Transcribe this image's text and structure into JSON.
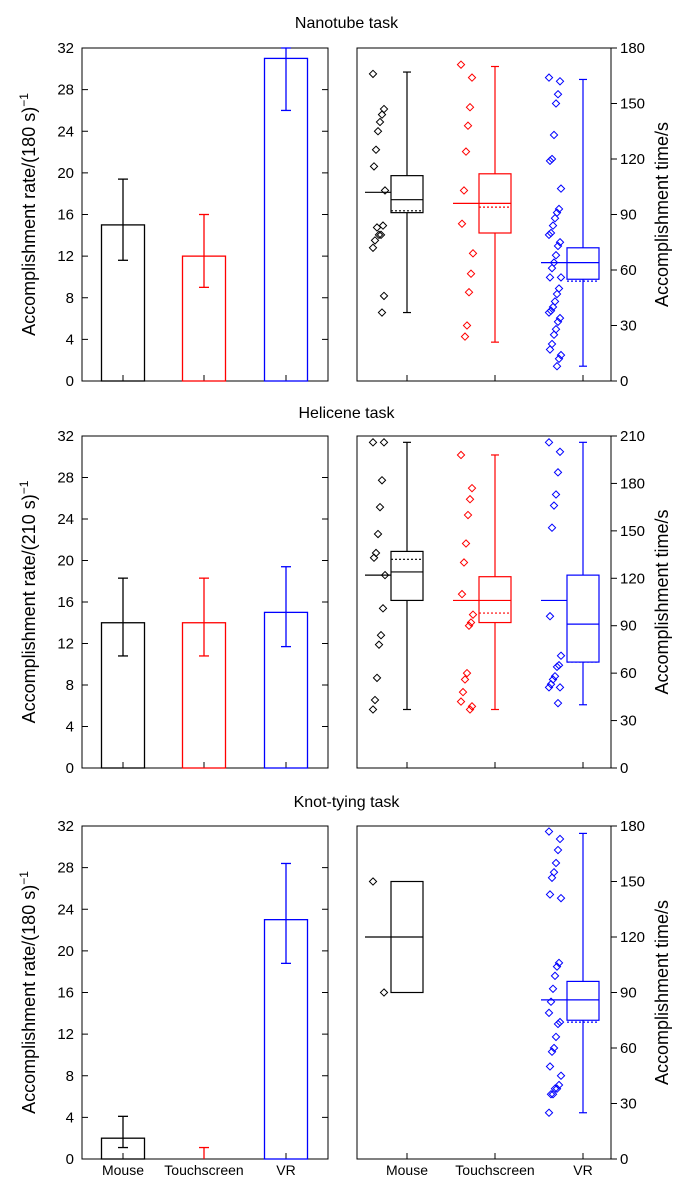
{
  "colors": {
    "mouse": "#000000",
    "touchscreen": "#ff0000",
    "vr": "#0000ff",
    "axis": "#000000"
  },
  "chart_data": [
    {
      "type": "bar",
      "title": "Nanotube task",
      "ylabel": "Accomplishment rate/(180 s)",
      "ylabel_exponent": "−1",
      "ylim": [
        0,
        32
      ],
      "yticks": [
        "0",
        "4",
        "8",
        "12",
        "16",
        "20",
        "24",
        "28",
        "32"
      ],
      "categories": [
        "Mouse",
        "Touchscreen",
        "VR"
      ],
      "values": [
        15,
        12,
        31
      ],
      "error_low": [
        11.6,
        9.0,
        26.0
      ],
      "error_high": [
        19.4,
        16.0,
        32.0
      ],
      "show_category_labels": false
    },
    {
      "type": "box",
      "title": "",
      "ylabel": "Accomplishment time/s",
      "ylim": [
        0,
        180
      ],
      "yticks": [
        "0",
        "30",
        "60",
        "90",
        "120",
        "150",
        "180"
      ],
      "categories": [
        "Mouse",
        "Touchscreen",
        "VR"
      ],
      "boxes": [
        {
          "q1": 91,
          "median": 98,
          "q3": 111,
          "mean": 92,
          "whisker_low": 37,
          "whisker_high": 167,
          "overall_mean": 102
        },
        {
          "q1": 80,
          "median": 96,
          "q3": 112,
          "mean": 94,
          "whisker_low": 21,
          "whisker_high": 170,
          "overall_mean": 96
        },
        {
          "q1": 55,
          "median": 64,
          "q3": 72,
          "mean": 54,
          "whisker_low": 8,
          "whisker_high": 163,
          "overall_mean": 64
        }
      ],
      "points": [
        [
          166,
          147,
          144,
          140,
          135,
          125,
          116,
          103,
          84,
          79,
          79,
          83,
          76,
          72,
          46,
          37
        ],
        [
          171,
          164,
          148,
          138,
          124,
          103,
          85,
          69,
          58,
          48,
          30,
          24
        ],
        [
          164,
          162,
          155,
          150,
          133,
          120,
          119,
          104,
          93,
          91,
          88,
          84,
          80,
          79,
          75,
          73,
          68,
          64,
          61,
          56,
          56,
          50,
          47,
          43,
          40,
          38,
          37,
          34,
          32,
          28,
          25,
          20,
          17,
          14,
          12,
          8
        ]
      ],
      "show_category_labels": false
    },
    {
      "type": "bar",
      "title": "Helicene task",
      "ylabel": "Accomplishment rate/(210 s)",
      "ylabel_exponent": "−1",
      "ylim": [
        0,
        32
      ],
      "yticks": [
        "0",
        "4",
        "8",
        "12",
        "16",
        "20",
        "24",
        "28",
        "32"
      ],
      "categories": [
        "Mouse",
        "Touchscreen",
        "VR"
      ],
      "values": [
        14,
        14,
        15
      ],
      "error_low": [
        10.8,
        10.8,
        11.7
      ],
      "error_high": [
        18.3,
        18.3,
        19.4
      ],
      "show_category_labels": false
    },
    {
      "type": "box",
      "title": "",
      "ylabel": "Accomplishment time/s",
      "ylim": [
        0,
        210
      ],
      "yticks": [
        "0",
        "30",
        "60",
        "90",
        "120",
        "150",
        "180",
        "210"
      ],
      "categories": [
        "Mouse",
        "Touchscreen",
        "VR"
      ],
      "boxes": [
        {
          "q1": 106,
          "median": 124,
          "q3": 137,
          "mean": 132,
          "whisker_low": 37,
          "whisker_high": 206,
          "overall_mean": 122
        },
        {
          "q1": 92,
          "median": 106,
          "q3": 121,
          "mean": 98,
          "whisker_low": 37,
          "whisker_high": 198,
          "overall_mean": 106
        },
        {
          "q1": 67,
          "median": 91,
          "q3": 122,
          "mean": 67,
          "whisker_low": 40,
          "whisker_high": 206,
          "overall_mean": 106
        }
      ],
      "points": [
        [
          206,
          206,
          182,
          165,
          148,
          136,
          133,
          122,
          101,
          84,
          78,
          57,
          43,
          37
        ],
        [
          198,
          177,
          170,
          160,
          142,
          130,
          110,
          97,
          92,
          90,
          60,
          56,
          48,
          42,
          39,
          37
        ],
        [
          206,
          200,
          187,
          173,
          166,
          152,
          96,
          71,
          65,
          64,
          58,
          56,
          53,
          51,
          51,
          41
        ]
      ],
      "show_category_labels": false
    },
    {
      "type": "bar",
      "title": "Knot-tying task",
      "ylabel": "Accomplishment rate/(180 s)",
      "ylabel_exponent": "−1",
      "ylim": [
        0,
        32
      ],
      "yticks": [
        "0",
        "4",
        "8",
        "12",
        "16",
        "20",
        "24",
        "28",
        "32"
      ],
      "categories": [
        "Mouse",
        "Touchscreen",
        "VR"
      ],
      "values": [
        2,
        0,
        23
      ],
      "error_low": [
        1.1,
        0,
        18.8
      ],
      "error_high": [
        4.1,
        1.1,
        28.4
      ],
      "show_category_labels": true
    },
    {
      "type": "box",
      "title": "",
      "ylabel": "Accomplishment time/s",
      "ylim": [
        0,
        180
      ],
      "yticks": [
        "0",
        "30",
        "60",
        "90",
        "120",
        "150",
        "180"
      ],
      "categories": [
        "Mouse",
        "Touchscreen",
        "VR"
      ],
      "boxes": [
        {
          "q1": 90,
          "median": 120,
          "q3": 150,
          "mean": null,
          "whisker_low": null,
          "whisker_high": null,
          "overall_mean": null
        },
        null,
        {
          "q1": 75,
          "median": 86,
          "q3": 96,
          "mean": 74,
          "whisker_low": 25,
          "whisker_high": 176,
          "overall_mean": 86
        }
      ],
      "points": [
        [
          150,
          90
        ],
        [],
        [
          177,
          173,
          167,
          160,
          155,
          152,
          143,
          141,
          106,
          104,
          99,
          92,
          85,
          79,
          74,
          73,
          66,
          60,
          58,
          50,
          45,
          40,
          38,
          38,
          35,
          35,
          25
        ]
      ],
      "show_category_labels": true
    }
  ]
}
